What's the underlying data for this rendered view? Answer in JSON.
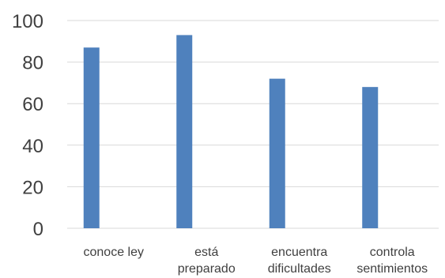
{
  "chart_data": {
    "type": "bar",
    "categories": [
      [
        "conoce ley"
      ],
      [
        "está",
        "preparado"
      ],
      [
        "encuentra",
        "dificultades"
      ],
      [
        "controla",
        "sentimientos"
      ]
    ],
    "values": [
      87,
      93,
      72,
      68
    ],
    "ylim": [
      0,
      100
    ],
    "yticks": [
      0,
      20,
      40,
      60,
      80,
      100
    ],
    "grid": true,
    "legend": "none",
    "title": "",
    "xlabel": "",
    "ylabel": "",
    "colors": {
      "bar": "#4f81bd",
      "grid": "#d9d9d9",
      "text": "#404040"
    }
  }
}
